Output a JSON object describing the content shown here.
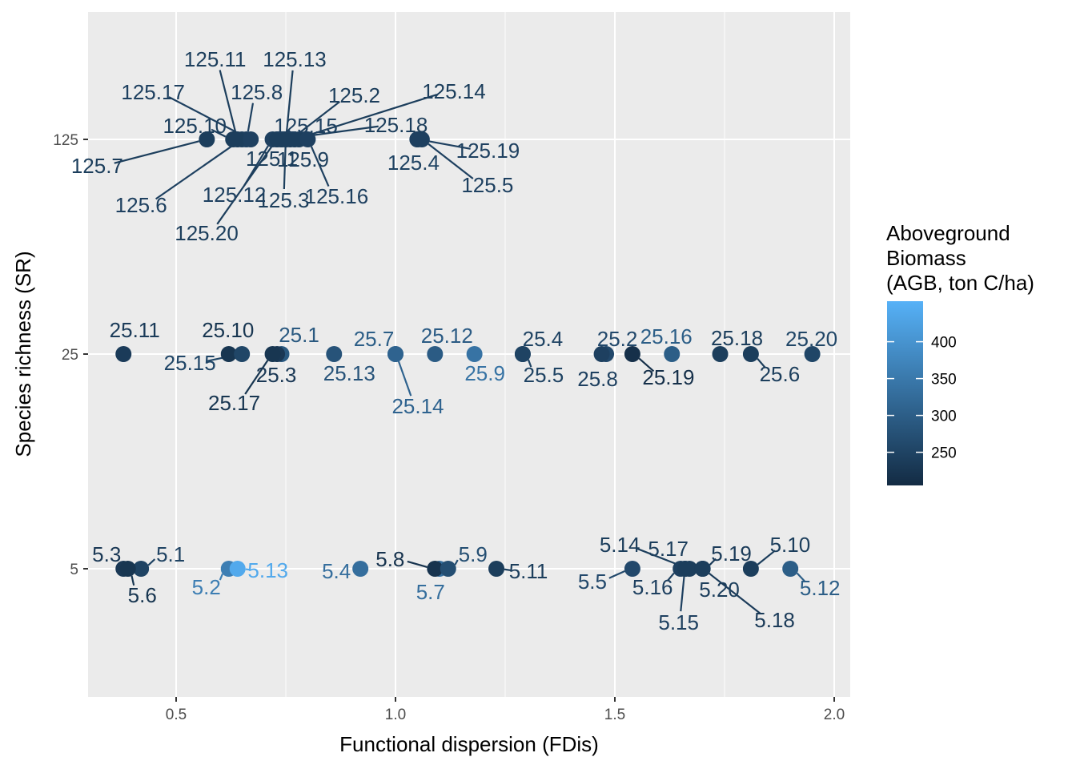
{
  "chart_data": {
    "type": "scatter",
    "xlabel": "Functional dispersion (FDis)",
    "ylabel": "Species richness (SR)",
    "xlim": [
      0.3,
      2.03
    ],
    "x_ticks": [
      "0.5",
      "1.0",
      "1.5",
      "2.0"
    ],
    "y_ticks": [
      "5",
      "25",
      "125"
    ],
    "y_scale": "categorical",
    "grid": true,
    "legend": {
      "title": [
        "Aboveground",
        "Biomass",
        "(AGB, ton C/ha)"
      ],
      "ticks": [
        250,
        300,
        350,
        400
      ],
      "placement": "right",
      "range": [
        205,
        455
      ],
      "color_low": "#132b43",
      "color_high": "#56b1f7"
    },
    "points": [
      {
        "label": "125.1",
        "x": 0.74,
        "y": "125",
        "agb": 240
      },
      {
        "label": "125.2",
        "x": 0.76,
        "y": "125",
        "agb": 240
      },
      {
        "label": "125.3",
        "x": 0.75,
        "y": "125",
        "agb": 240
      },
      {
        "label": "125.4",
        "x": 1.05,
        "y": "125",
        "agb": 250
      },
      {
        "label": "125.5",
        "x": 1.06,
        "y": "125",
        "agb": 245
      },
      {
        "label": "125.6",
        "x": 0.65,
        "y": "125",
        "agb": 245
      },
      {
        "label": "125.7",
        "x": 0.57,
        "y": "125",
        "agb": 240
      },
      {
        "label": "125.8",
        "x": 0.66,
        "y": "125",
        "agb": 245
      },
      {
        "label": "125.9",
        "x": 0.78,
        "y": "125",
        "agb": 240
      },
      {
        "label": "125.10",
        "x": 0.63,
        "y": "125",
        "agb": 240
      },
      {
        "label": "125.11",
        "x": 0.64,
        "y": "125",
        "agb": 240
      },
      {
        "label": "125.12",
        "x": 0.72,
        "y": "125",
        "agb": 245
      },
      {
        "label": "125.13",
        "x": 0.75,
        "y": "125",
        "agb": 240
      },
      {
        "label": "125.14",
        "x": 0.77,
        "y": "125",
        "agb": 240
      },
      {
        "label": "125.15",
        "x": 0.73,
        "y": "125",
        "agb": 245
      },
      {
        "label": "125.16",
        "x": 0.8,
        "y": "125",
        "agb": 245
      },
      {
        "label": "125.17",
        "x": 0.67,
        "y": "125",
        "agb": 245
      },
      {
        "label": "125.18",
        "x": 0.74,
        "y": "125",
        "agb": 240
      },
      {
        "label": "125.19",
        "x": 1.05,
        "y": "125",
        "agb": 245
      },
      {
        "label": "125.20",
        "x": 0.73,
        "y": "125",
        "agb": 240
      },
      {
        "label": "25.1",
        "x": 0.74,
        "y": "25",
        "agb": 290
      },
      {
        "label": "25.2",
        "x": 1.48,
        "y": "25",
        "agb": 260
      },
      {
        "label": "25.3",
        "x": 0.73,
        "y": "25",
        "agb": 230
      },
      {
        "label": "25.4",
        "x": 1.29,
        "y": "25",
        "agb": 250
      },
      {
        "label": "25.5",
        "x": 1.29,
        "y": "25",
        "agb": 250
      },
      {
        "label": "25.6",
        "x": 1.81,
        "y": "25",
        "agb": 240
      },
      {
        "label": "25.7",
        "x": 1.0,
        "y": "25",
        "agb": 300
      },
      {
        "label": "25.8",
        "x": 1.47,
        "y": "25",
        "agb": 245
      },
      {
        "label": "25.9",
        "x": 1.18,
        "y": "25",
        "agb": 340
      },
      {
        "label": "25.10",
        "x": 0.62,
        "y": "25",
        "agb": 225
      },
      {
        "label": "25.11",
        "x": 0.38,
        "y": "25",
        "agb": 235
      },
      {
        "label": "25.12",
        "x": 1.09,
        "y": "25",
        "agb": 295
      },
      {
        "label": "25.13",
        "x": 0.86,
        "y": "25",
        "agb": 280
      },
      {
        "label": "25.14",
        "x": 1.0,
        "y": "25",
        "agb": 310
      },
      {
        "label": "25.15",
        "x": 0.65,
        "y": "25",
        "agb": 255
      },
      {
        "label": "25.16",
        "x": 1.63,
        "y": "25",
        "agb": 300
      },
      {
        "label": "25.17",
        "x": 0.72,
        "y": "25",
        "agb": 225
      },
      {
        "label": "25.18",
        "x": 1.74,
        "y": "25",
        "agb": 240
      },
      {
        "label": "25.19",
        "x": 1.54,
        "y": "25",
        "agb": 215
      },
      {
        "label": "25.20",
        "x": 1.95,
        "y": "25",
        "agb": 255
      },
      {
        "label": "5.1",
        "x": 0.42,
        "y": "5",
        "agb": 250
      },
      {
        "label": "5.2",
        "x": 0.62,
        "y": "5",
        "agb": 360
      },
      {
        "label": "5.3",
        "x": 0.38,
        "y": "5",
        "agb": 230
      },
      {
        "label": "5.4",
        "x": 0.92,
        "y": "5",
        "agb": 330
      },
      {
        "label": "5.5",
        "x": 1.54,
        "y": "5",
        "agb": 260
      },
      {
        "label": "5.6",
        "x": 0.39,
        "y": "5",
        "agb": 225
      },
      {
        "label": "5.7",
        "x": 1.1,
        "y": "5",
        "agb": 330
      },
      {
        "label": "5.8",
        "x": 1.09,
        "y": "5",
        "agb": 220
      },
      {
        "label": "5.9",
        "x": 1.12,
        "y": "5",
        "agb": 270
      },
      {
        "label": "5.10",
        "x": 1.81,
        "y": "5",
        "agb": 240
      },
      {
        "label": "5.11",
        "x": 1.23,
        "y": "5",
        "agb": 240
      },
      {
        "label": "5.12",
        "x": 1.9,
        "y": "5",
        "agb": 300
      },
      {
        "label": "5.13",
        "x": 0.64,
        "y": "5",
        "agb": 440
      },
      {
        "label": "5.14",
        "x": 1.67,
        "y": "5",
        "agb": 240
      },
      {
        "label": "5.15",
        "x": 1.66,
        "y": "5",
        "agb": 245
      },
      {
        "label": "5.16",
        "x": 1.65,
        "y": "5",
        "agb": 245
      },
      {
        "label": "5.17",
        "x": 1.66,
        "y": "5",
        "agb": 240
      },
      {
        "label": "5.18",
        "x": 1.7,
        "y": "5",
        "agb": 235
      },
      {
        "label": "5.19",
        "x": 1.7,
        "y": "5",
        "agb": 235
      },
      {
        "label": "5.20",
        "x": 1.7,
        "y": "5",
        "agb": 240
      }
    ]
  }
}
